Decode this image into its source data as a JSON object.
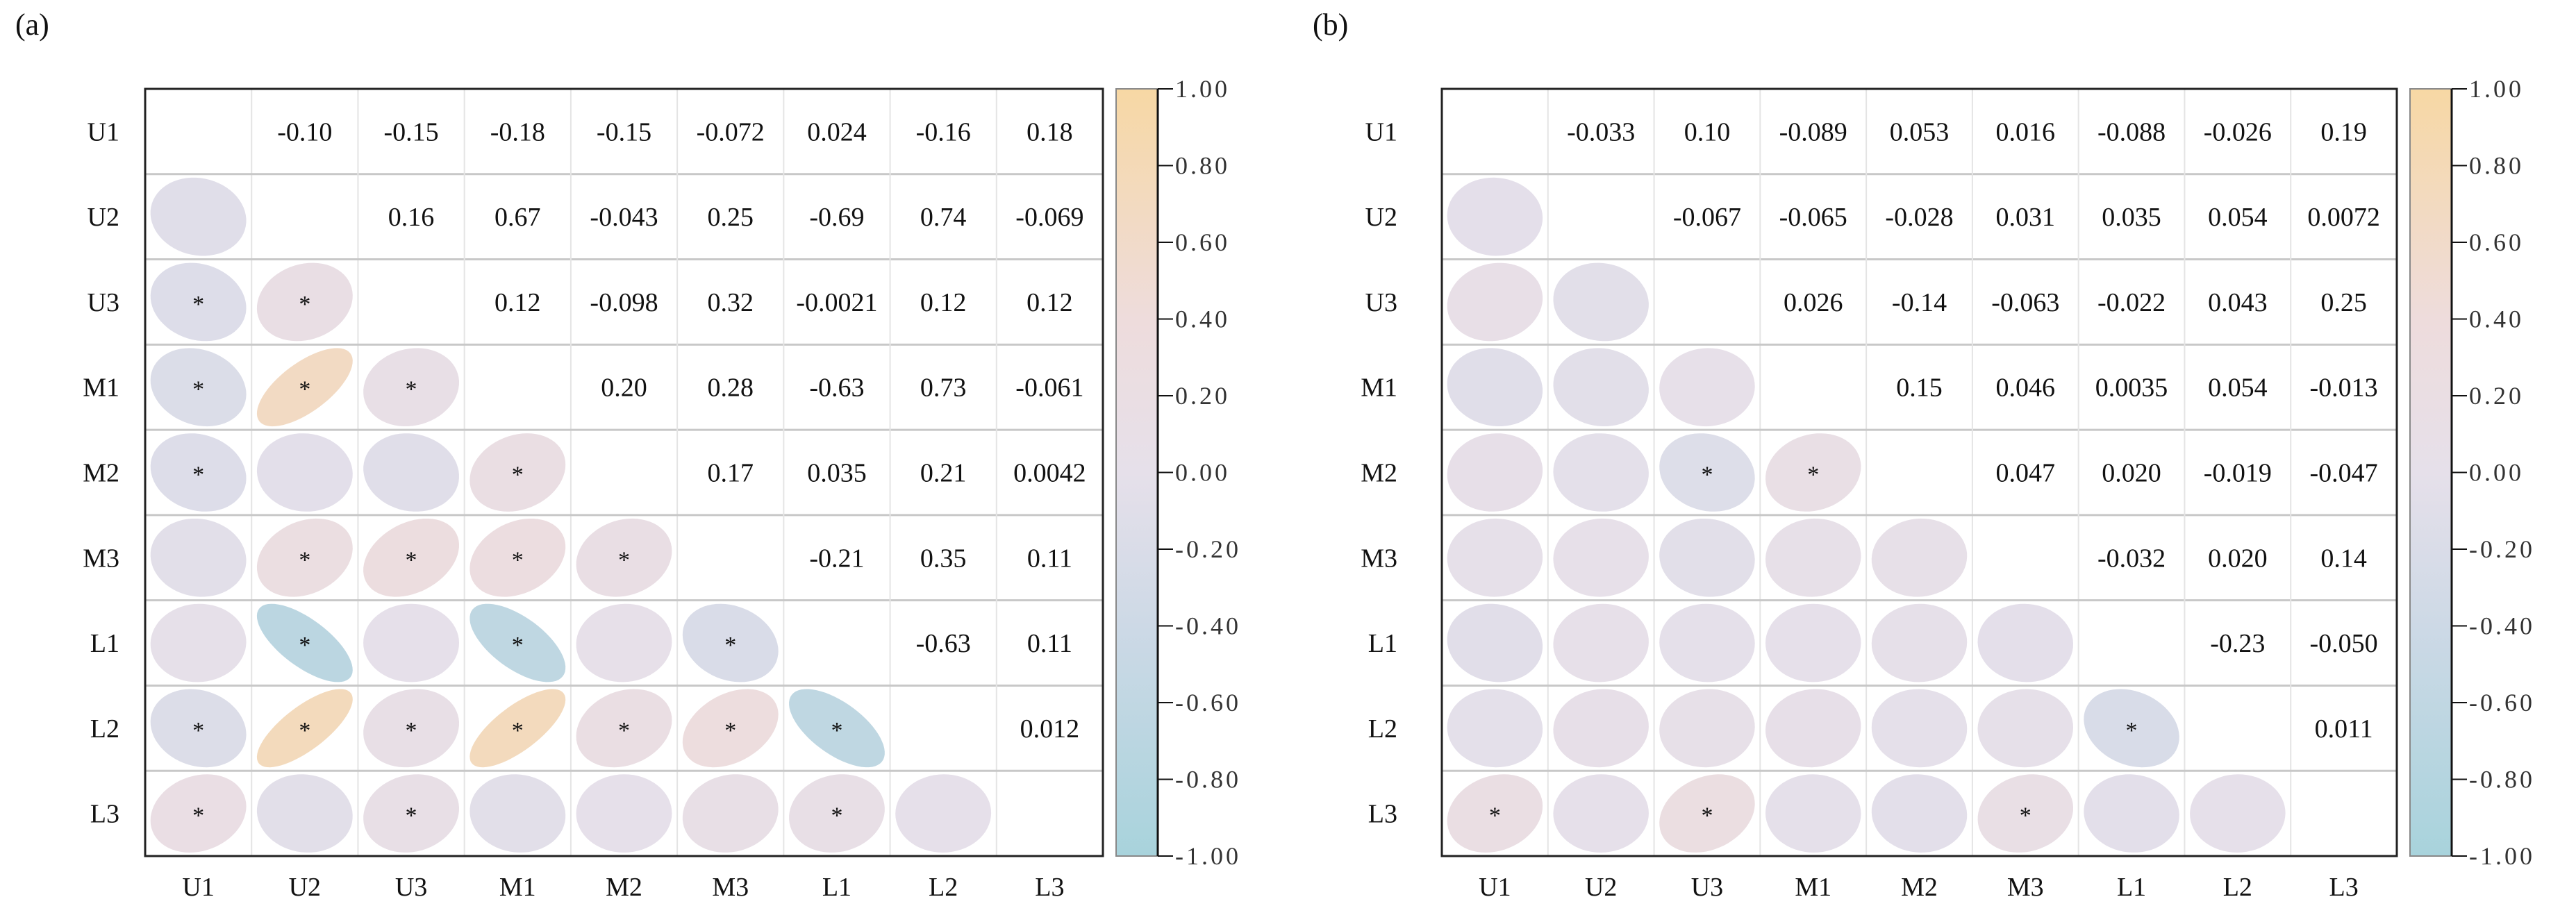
{
  "chart_data": [
    {
      "type": "heatmap",
      "panel_label": "(a)",
      "labels": [
        "U1",
        "U2",
        "U3",
        "M1",
        "M2",
        "M3",
        "L1",
        "L2",
        "L3"
      ],
      "upper": [
        [
          "-0.10",
          "-0.15",
          "-0.18",
          "-0.15",
          "-0.072",
          "0.024",
          "-0.16",
          "0.18"
        ],
        [
          "0.16",
          "0.67",
          "-0.043",
          "0.25",
          "-0.69",
          "0.74",
          "-0.069"
        ],
        [
          "0.12",
          "-0.098",
          "0.32",
          "-0.0021",
          "0.12",
          "0.12"
        ],
        [
          "0.20",
          "0.28",
          "-0.63",
          "0.73",
          "-0.061"
        ],
        [
          "0.17",
          "0.035",
          "0.21",
          "0.0042"
        ],
        [
          "-0.21",
          "0.35",
          "0.11"
        ],
        [
          "-0.63",
          "0.11"
        ],
        [
          "0.012"
        ]
      ],
      "significant_marker": "*",
      "significant_pairs": [
        [
          "U3",
          "U1"
        ],
        [
          "U3",
          "U2"
        ],
        [
          "M1",
          "U1"
        ],
        [
          "M1",
          "U2"
        ],
        [
          "M1",
          "U3"
        ],
        [
          "M2",
          "U1"
        ],
        [
          "M2",
          "M1"
        ],
        [
          "M3",
          "U2"
        ],
        [
          "M3",
          "U3"
        ],
        [
          "M3",
          "M1"
        ],
        [
          "M3",
          "M2"
        ],
        [
          "L1",
          "U2"
        ],
        [
          "L1",
          "M1"
        ],
        [
          "L1",
          "M3"
        ],
        [
          "L2",
          "U1"
        ],
        [
          "L2",
          "U2"
        ],
        [
          "L2",
          "U3"
        ],
        [
          "L2",
          "M1"
        ],
        [
          "L2",
          "M2"
        ],
        [
          "L2",
          "M3"
        ],
        [
          "L2",
          "L1"
        ],
        [
          "L3",
          "U1"
        ],
        [
          "L3",
          "U3"
        ],
        [
          "L3",
          "L1"
        ]
      ],
      "colorbar": {
        "range": [
          -1,
          1
        ],
        "ticks": [
          "1.00",
          "0.80",
          "0.60",
          "0.40",
          "0.20",
          "0.00",
          "-0.20",
          "-0.40",
          "-0.60",
          "-0.80",
          "-1.00"
        ]
      }
    },
    {
      "type": "heatmap",
      "panel_label": "(b)",
      "labels": [
        "U1",
        "U2",
        "U3",
        "M1",
        "M2",
        "M3",
        "L1",
        "L2",
        "L3"
      ],
      "upper": [
        [
          "-0.033",
          "0.10",
          "-0.089",
          "0.053",
          "0.016",
          "-0.088",
          "-0.026",
          "0.19"
        ],
        [
          "-0.067",
          "-0.065",
          "-0.028",
          "0.031",
          "0.035",
          "0.054",
          "0.0072"
        ],
        [
          "0.026",
          "-0.14",
          "-0.063",
          "-0.022",
          "0.043",
          "0.25"
        ],
        [
          "0.15",
          "0.046",
          "0.0035",
          "0.054",
          "-0.013"
        ],
        [
          "0.047",
          "0.020",
          "-0.019",
          "-0.047"
        ],
        [
          "-0.032",
          "0.020",
          "0.14"
        ],
        [
          "-0.23",
          "-0.050"
        ],
        [
          "0.011"
        ]
      ],
      "significant_marker": "*",
      "significant_pairs": [
        [
          "M2",
          "U3"
        ],
        [
          "M2",
          "M1"
        ],
        [
          "L2",
          "L1"
        ],
        [
          "L3",
          "U1"
        ],
        [
          "L3",
          "U3"
        ],
        [
          "L3",
          "M3"
        ]
      ],
      "colorbar": {
        "range": [
          -1,
          1
        ],
        "ticks": [
          "1.00",
          "0.80",
          "0.60",
          "0.40",
          "0.20",
          "0.00",
          "-0.20",
          "-0.40",
          "-0.60",
          "-0.80",
          "-1.00"
        ]
      }
    }
  ],
  "colors": {
    "negative": "#a8d3dc",
    "neg_mid": "#cdd9e6",
    "zero": "#e6e0ea",
    "pos_mid": "#eedcdc",
    "positive": "#f7d8a4"
  }
}
